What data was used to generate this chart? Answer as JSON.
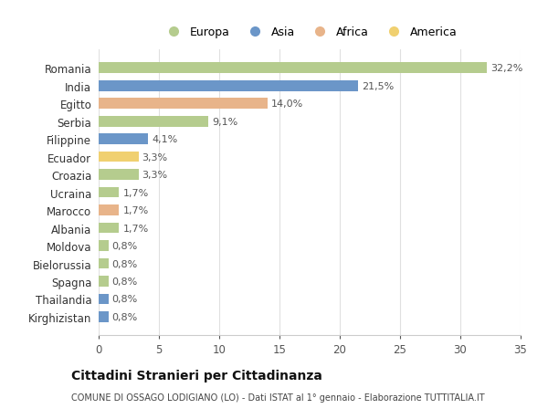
{
  "countries": [
    "Romania",
    "India",
    "Egitto",
    "Serbia",
    "Filippine",
    "Ecuador",
    "Croazia",
    "Ucraina",
    "Marocco",
    "Albania",
    "Moldova",
    "Bielorussia",
    "Spagna",
    "Thailandia",
    "Kirghizistan"
  ],
  "values": [
    32.2,
    21.5,
    14.0,
    9.1,
    4.1,
    3.3,
    3.3,
    1.7,
    1.7,
    1.7,
    0.8,
    0.8,
    0.8,
    0.8,
    0.8
  ],
  "labels": [
    "32,2%",
    "21,5%",
    "14,0%",
    "9,1%",
    "4,1%",
    "3,3%",
    "3,3%",
    "1,7%",
    "1,7%",
    "1,7%",
    "0,8%",
    "0,8%",
    "0,8%",
    "0,8%",
    "0,8%"
  ],
  "continents": [
    "Europa",
    "Asia",
    "Africa",
    "Europa",
    "Asia",
    "America",
    "Europa",
    "Europa",
    "Africa",
    "Europa",
    "Europa",
    "Europa",
    "Europa",
    "Asia",
    "Asia"
  ],
  "colors": {
    "Europa": "#b5cc8e",
    "Asia": "#6b96c8",
    "Africa": "#e8b48a",
    "America": "#f0d070"
  },
  "background_color": "#ffffff",
  "plot_bg_color": "#ffffff",
  "grid_color": "#e0e0e0",
  "title": "Cittadini Stranieri per Cittadinanza",
  "subtitle": "COMUNE DI OSSAGO LODIGIANO (LO) - Dati ISTAT al 1° gennaio - Elaborazione TUTTITALIA.IT",
  "xlim": [
    0,
    35
  ],
  "xticks": [
    0,
    5,
    10,
    15,
    20,
    25,
    30,
    35
  ],
  "legend_order": [
    "Europa",
    "Asia",
    "Africa",
    "America"
  ]
}
